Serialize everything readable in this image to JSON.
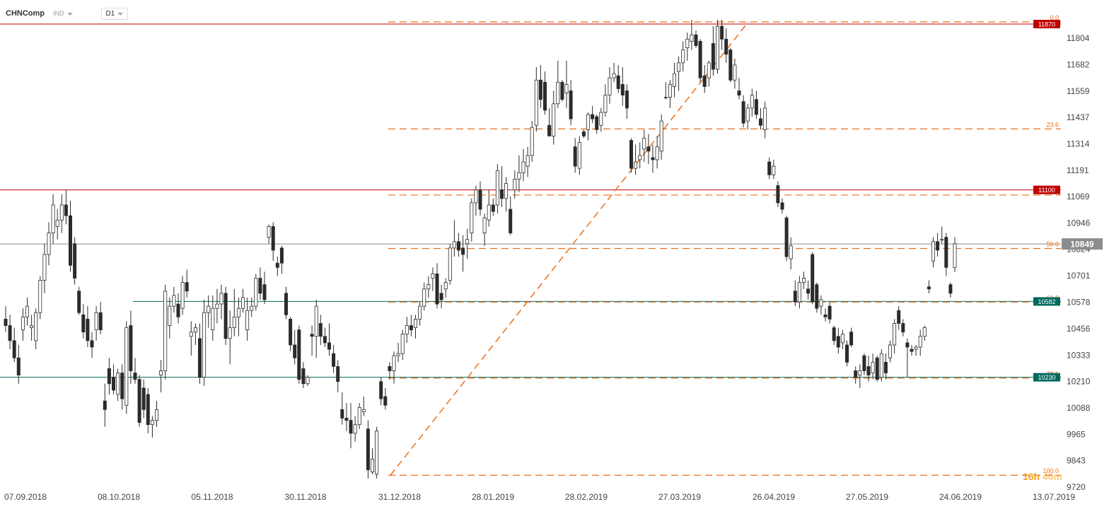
{
  "toolbar": {
    "symbol": "CHNComp",
    "type": "IND",
    "timeframe": "D1"
  },
  "timer": {
    "hours": "16h",
    "minutes": "40m"
  },
  "colors": {
    "bull": "#ffffff",
    "bear": "#2b2b2b",
    "wick": "#2b2b2b",
    "fib": "#e8701a",
    "resistance": "#c00000",
    "support": "#00695c",
    "price": "#8c8c8c"
  },
  "chart_data": {
    "type": "candlestick",
    "ylim": [
      9720,
      11926
    ],
    "y_ticks": [
      11804,
      11682,
      11559,
      11437,
      11314,
      11191,
      11069,
      10946,
      10824,
      10701,
      10578,
      10456,
      10333,
      10210,
      10088,
      9965,
      9843,
      9720
    ],
    "x_ticks": [
      "07.09.2018",
      "08.10.2018",
      "05.11.2018",
      "30.11.2018",
      "31.12.2018",
      "28.01.2019",
      "28.02.2019",
      "27.03.2019",
      "26.04.2019",
      "27.05.2019",
      "24.06.2019",
      "13.07.2019"
    ],
    "current_price": {
      "label": "10849",
      "value": 10849
    },
    "levels": [
      {
        "label": "11870",
        "value": 11870,
        "kind": "resistance"
      },
      {
        "label": "11100",
        "value": 11100,
        "kind": "resistance"
      },
      {
        "label": "10582",
        "value": 10582,
        "kind": "support"
      },
      {
        "label": "10230",
        "value": 10230,
        "kind": "support"
      }
    ],
    "fibonacci": {
      "high": 11880,
      "low": 9775,
      "levels": [
        {
          "label": "0.0",
          "value": 11880
        },
        {
          "label": "23.6",
          "value": 11383
        },
        {
          "label": "38.2",
          "value": 11076
        },
        {
          "label": "50.0",
          "value": 10828
        },
        {
          "label": "61.8",
          "value": 10579
        },
        {
          "label": "78.6",
          "value": 10226
        },
        {
          "label": "100.0",
          "value": 9775
        }
      ]
    },
    "candles": [
      [
        10500,
        10560,
        10440,
        10470
      ],
      [
        10470,
        10520,
        10360,
        10400
      ],
      [
        10400,
        10460,
        10300,
        10320
      ],
      [
        10320,
        10380,
        10200,
        10240
      ],
      [
        10450,
        10550,
        10400,
        10510
      ],
      [
        10510,
        10600,
        10470,
        10560
      ],
      [
        10460,
        10520,
        10400,
        10470
      ],
      [
        10400,
        10550,
        10360,
        10530
      ],
      [
        10530,
        10700,
        10500,
        10680
      ],
      [
        10680,
        10850,
        10620,
        10800
      ],
      [
        10800,
        10950,
        10750,
        10900
      ],
      [
        10900,
        11080,
        10850,
        11030
      ],
      [
        10930,
        11010,
        10870,
        10960
      ],
      [
        10960,
        11080,
        10900,
        11030
      ],
      [
        11030,
        11100,
        10940,
        10980
      ],
      [
        10980,
        11050,
        10720,
        10750
      ],
      [
        10850,
        10880,
        10660,
        10690
      ],
      [
        10630,
        10650,
        10520,
        10530
      ],
      [
        10520,
        10570,
        10410,
        10440
      ],
      [
        10500,
        10560,
        10370,
        10400
      ],
      [
        10400,
        10440,
        10320,
        10370
      ],
      [
        10450,
        10560,
        10400,
        10530
      ],
      [
        10530,
        10580,
        10430,
        10450
      ],
      [
        10120,
        10200,
        10000,
        10080
      ],
      [
        10270,
        10320,
        10150,
        10200
      ],
      [
        10230,
        10290,
        10150,
        10170
      ],
      [
        10150,
        10270,
        10120,
        10250
      ],
      [
        10250,
        10290,
        10080,
        10130
      ],
      [
        10100,
        10490,
        10060,
        10460
      ],
      [
        10470,
        10540,
        10200,
        10260
      ],
      [
        10250,
        10320,
        10200,
        10220
      ],
      [
        10220,
        10240,
        10000,
        10020
      ],
      [
        10180,
        10220,
        10040,
        10080
      ],
      [
        10150,
        10180,
        9970,
        10010
      ],
      [
        10010,
        10050,
        9950,
        10030
      ],
      [
        10030,
        10120,
        10000,
        10080
      ],
      [
        10240,
        10310,
        10160,
        10260
      ],
      [
        10260,
        10660,
        10220,
        10630
      ],
      [
        10470,
        10600,
        10410,
        10560
      ],
      [
        10560,
        10650,
        10530,
        10610
      ],
      [
        10570,
        10620,
        10480,
        10510
      ],
      [
        10550,
        10700,
        10520,
        10670
      ],
      [
        10670,
        10730,
        10600,
        10630
      ],
      [
        10420,
        10490,
        10330,
        10440
      ],
      [
        10440,
        10480,
        10380,
        10460
      ],
      [
        10410,
        10480,
        10200,
        10230
      ],
      [
        10230,
        10590,
        10190,
        10530
      ],
      [
        10530,
        10610,
        10460,
        10560
      ],
      [
        10450,
        10610,
        10400,
        10550
      ],
      [
        10550,
        10640,
        10480,
        10570
      ],
      [
        10570,
        10660,
        10500,
        10620
      ],
      [
        10620,
        10650,
        10380,
        10410
      ],
      [
        10410,
        10540,
        10290,
        10460
      ],
      [
        10460,
        10640,
        10420,
        10510
      ],
      [
        10510,
        10600,
        10420,
        10550
      ],
      [
        10550,
        10640,
        10530,
        10600
      ],
      [
        10450,
        10600,
        10400,
        10540
      ],
      [
        10540,
        10600,
        10510,
        10560
      ],
      [
        10560,
        10710,
        10540,
        10690
      ],
      [
        10690,
        10740,
        10590,
        10620
      ],
      [
        10660,
        10720,
        10570,
        10590
      ],
      [
        10880,
        10940,
        10850,
        10930
      ],
      [
        10930,
        10950,
        10770,
        10820
      ],
      [
        10760,
        10790,
        10700,
        10740
      ],
      [
        10830,
        10840,
        10710,
        10760
      ],
      [
        10620,
        10650,
        10500,
        10520
      ],
      [
        10500,
        10510,
        10350,
        10380
      ],
      [
        10380,
        10450,
        10290,
        10320
      ],
      [
        10450,
        10470,
        10200,
        10220
      ],
      [
        10270,
        10300,
        10180,
        10200
      ],
      [
        10200,
        10240,
        10190,
        10230
      ],
      [
        10430,
        10470,
        10330,
        10420
      ],
      [
        10420,
        10590,
        10320,
        10560
      ],
      [
        10480,
        10520,
        10380,
        10420
      ],
      [
        10420,
        10460,
        10370,
        10390
      ],
      [
        10390,
        10480,
        10330,
        10360
      ],
      [
        10340,
        10380,
        10250,
        10280
      ],
      [
        10280,
        10310,
        10160,
        10210
      ],
      [
        10080,
        10160,
        10010,
        10040
      ],
      [
        10040,
        10110,
        9980,
        10030
      ],
      [
        10030,
        10110,
        9900,
        9970
      ],
      [
        9970,
        10050,
        9930,
        10010
      ],
      [
        10010,
        10110,
        9990,
        10090
      ],
      [
        10070,
        10140,
        10050,
        10080
      ],
      [
        9990,
        10030,
        9760,
        9800
      ],
      [
        9790,
        9900,
        9780,
        9850
      ],
      [
        9780,
        10000,
        9760,
        9980
      ],
      [
        10210,
        10230,
        10100,
        10130
      ],
      [
        10140,
        10180,
        10080,
        10100
      ],
      [
        10280,
        10300,
        10220,
        10260
      ],
      [
        10260,
        10350,
        10200,
        10330
      ],
      [
        10330,
        10390,
        10300,
        10340
      ],
      [
        10340,
        10450,
        10310,
        10430
      ],
      [
        10430,
        10510,
        10390,
        10470
      ],
      [
        10470,
        10520,
        10420,
        10450
      ],
      [
        10460,
        10520,
        10410,
        10500
      ],
      [
        10500,
        10580,
        10470,
        10560
      ],
      [
        10560,
        10670,
        10540,
        10640
      ],
      [
        10640,
        10700,
        10600,
        10660
      ],
      [
        10690,
        10740,
        10630,
        10710
      ],
      [
        10710,
        10760,
        10550,
        10570
      ],
      [
        10620,
        10660,
        10550,
        10590
      ],
      [
        10640,
        10690,
        10600,
        10670
      ],
      [
        10680,
        10850,
        10660,
        10830
      ],
      [
        10830,
        10960,
        10790,
        10860
      ],
      [
        10860,
        10900,
        10790,
        10820
      ],
      [
        10830,
        10890,
        10720,
        10800
      ],
      [
        10850,
        10920,
        10780,
        10870
      ],
      [
        10900,
        11060,
        10860,
        11040
      ],
      [
        11040,
        11120,
        10980,
        11100
      ],
      [
        11100,
        11140,
        10980,
        11010
      ],
      [
        10900,
        10990,
        10840,
        10970
      ],
      [
        10960,
        11100,
        10930,
        11030
      ],
      [
        11030,
        11060,
        10980,
        11000
      ],
      [
        11030,
        11220,
        10990,
        11190
      ],
      [
        11100,
        11210,
        11020,
        11060
      ],
      [
        11060,
        11160,
        11000,
        11130
      ],
      [
        11010,
        11070,
        10890,
        10900
      ],
      [
        11100,
        11190,
        11060,
        11150
      ],
      [
        11150,
        11260,
        11090,
        11180
      ],
      [
        11180,
        11290,
        11140,
        11230
      ],
      [
        11210,
        11300,
        11160,
        11260
      ],
      [
        11260,
        11420,
        11230,
        11390
      ],
      [
        11400,
        11670,
        11370,
        11610
      ],
      [
        11610,
        11680,
        11480,
        11520
      ],
      [
        11600,
        11650,
        11450,
        11470
      ],
      [
        11400,
        11480,
        11350,
        11350
      ],
      [
        11350,
        11560,
        11310,
        11500
      ],
      [
        11500,
        11700,
        11480,
        11600
      ],
      [
        11600,
        11610,
        11510,
        11520
      ],
      [
        11550,
        11700,
        11480,
        11590
      ],
      [
        11560,
        11610,
        11400,
        11430
      ],
      [
        11300,
        11340,
        11180,
        11210
      ],
      [
        11200,
        11350,
        11170,
        11320
      ],
      [
        11370,
        11380,
        11340,
        11350
      ],
      [
        11380,
        11460,
        11330,
        11450
      ],
      [
        11450,
        11490,
        11410,
        11430
      ],
      [
        11440,
        11450,
        11360,
        11380
      ],
      [
        11400,
        11480,
        11370,
        11460
      ],
      [
        11460,
        11590,
        11440,
        11540
      ],
      [
        11540,
        11670,
        11500,
        11620
      ],
      [
        11620,
        11690,
        11600,
        11640
      ],
      [
        11630,
        11680,
        11550,
        11570
      ],
      [
        11590,
        11670,
        11490,
        11540
      ],
      [
        11560,
        11590,
        11430,
        11480
      ],
      [
        11330,
        11340,
        11180,
        11200
      ],
      [
        11200,
        11310,
        11170,
        11230
      ],
      [
        11240,
        11320,
        11200,
        11260
      ],
      [
        11290,
        11380,
        11230,
        11340
      ],
      [
        11300,
        11360,
        11220,
        11280
      ],
      [
        11250,
        11310,
        11180,
        11240
      ],
      [
        11240,
        11350,
        11200,
        11300
      ],
      [
        11280,
        11450,
        11240,
        11420
      ],
      [
        11530,
        11600,
        11520,
        11530
      ],
      [
        11530,
        11610,
        11480,
        11590
      ],
      [
        11580,
        11690,
        11530,
        11640
      ],
      [
        11650,
        11720,
        11560,
        11690
      ],
      [
        11690,
        11790,
        11650,
        11750
      ],
      [
        11760,
        11830,
        11700,
        11800
      ],
      [
        11790,
        11890,
        11750,
        11820
      ],
      [
        11820,
        11840,
        11760,
        11770
      ],
      [
        11790,
        11800,
        11600,
        11620
      ],
      [
        11630,
        11680,
        11550,
        11580
      ],
      [
        11620,
        11700,
        11580,
        11690
      ],
      [
        11780,
        11860,
        11630,
        11660
      ],
      [
        11660,
        11890,
        11640,
        11860
      ],
      [
        11860,
        11890,
        11750,
        11800
      ],
      [
        11800,
        11850,
        11690,
        11730
      ],
      [
        11750,
        11760,
        11600,
        11610
      ],
      [
        11610,
        11710,
        11570,
        11680
      ],
      [
        11560,
        11620,
        11520,
        11540
      ],
      [
        11510,
        11540,
        11390,
        11410
      ],
      [
        11420,
        11500,
        11380,
        11480
      ],
      [
        11480,
        11570,
        11440,
        11540
      ],
      [
        11520,
        11560,
        11430,
        11450
      ],
      [
        11430,
        11480,
        11380,
        11400
      ],
      [
        11380,
        11510,
        11340,
        11480
      ],
      [
        11230,
        11250,
        11150,
        11170
      ],
      [
        11170,
        11240,
        11150,
        11210
      ],
      [
        11120,
        11140,
        11020,
        11040
      ],
      [
        11040,
        11060,
        10990,
        11010
      ],
      [
        10970,
        10980,
        10770,
        10790
      ],
      [
        10780,
        10880,
        10730,
        10840
      ],
      [
        10630,
        10680,
        10560,
        10580
      ],
      [
        10580,
        10700,
        10550,
        10670
      ],
      [
        10670,
        10720,
        10640,
        10690
      ],
      [
        10640,
        10680,
        10590,
        10620
      ],
      [
        10800,
        10810,
        10570,
        10580
      ],
      [
        10660,
        10670,
        10530,
        10550
      ],
      [
        10560,
        10610,
        10520,
        10590
      ],
      [
        10520,
        10550,
        10490,
        10510
      ],
      [
        10560,
        10580,
        10480,
        10500
      ],
      [
        10460,
        10470,
        10380,
        10400
      ],
      [
        10420,
        10460,
        10340,
        10370
      ],
      [
        10390,
        10450,
        10360,
        10430
      ],
      [
        10380,
        10400,
        10280,
        10300
      ],
      [
        10440,
        10460,
        10370,
        10380
      ],
      [
        10260,
        10280,
        10200,
        10230
      ],
      [
        10240,
        10290,
        10180,
        10260
      ],
      [
        10330,
        10340,
        10240,
        10260
      ],
      [
        10280,
        10330,
        10210,
        10240
      ],
      [
        10250,
        10340,
        10220,
        10300
      ],
      [
        10320,
        10330,
        10210,
        10220
      ],
      [
        10230,
        10360,
        10210,
        10340
      ],
      [
        10300,
        10340,
        10220,
        10250
      ],
      [
        10320,
        10400,
        10300,
        10380
      ],
      [
        10380,
        10500,
        10340,
        10480
      ],
      [
        10540,
        10560,
        10450,
        10480
      ],
      [
        10480,
        10500,
        10420,
        10440
      ],
      [
        10390,
        10410,
        10230,
        10370
      ],
      [
        10360,
        10380,
        10330,
        10350
      ],
      [
        10360,
        10380,
        10330,
        10370
      ],
      [
        10370,
        10450,
        10330,
        10420
      ],
      [
        10420,
        10470,
        10400,
        10460
      ],
      [
        10650,
        10680,
        10620,
        10640
      ],
      [
        10770,
        10880,
        10740,
        10860
      ],
      [
        10860,
        10900,
        10790,
        10820
      ],
      [
        10870,
        10930,
        10850,
        10870
      ],
      [
        10880,
        10900,
        10700,
        10740
      ],
      [
        10660,
        10670,
        10600,
        10620
      ],
      [
        10740,
        10880,
        10720,
        10850
      ]
    ]
  }
}
